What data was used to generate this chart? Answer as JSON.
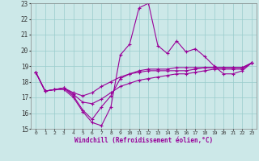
{
  "xlabel": "Windchill (Refroidissement éolien,°C)",
  "x": [
    0,
    1,
    2,
    3,
    4,
    5,
    6,
    7,
    8,
    9,
    10,
    11,
    12,
    13,
    14,
    15,
    16,
    17,
    18,
    19,
    20,
    21,
    22,
    23
  ],
  "line1": [
    18.6,
    17.4,
    17.5,
    17.5,
    17.0,
    16.1,
    15.4,
    15.2,
    16.4,
    19.7,
    20.4,
    22.7,
    23.0,
    20.3,
    19.8,
    20.6,
    19.9,
    20.1,
    19.6,
    19.0,
    18.5,
    18.5,
    18.7,
    19.2
  ],
  "line2": [
    18.6,
    17.4,
    17.5,
    17.6,
    17.1,
    16.2,
    15.6,
    16.4,
    17.1,
    18.2,
    18.5,
    18.7,
    18.8,
    18.8,
    18.8,
    18.9,
    18.9,
    18.9,
    18.9,
    18.9,
    18.9,
    18.9,
    18.9,
    19.2
  ],
  "line3": [
    18.6,
    17.4,
    17.5,
    17.6,
    17.2,
    16.7,
    16.6,
    16.9,
    17.3,
    17.7,
    17.9,
    18.1,
    18.2,
    18.3,
    18.4,
    18.5,
    18.5,
    18.6,
    18.7,
    18.8,
    18.8,
    18.8,
    18.8,
    19.2
  ],
  "line4": [
    18.6,
    17.4,
    17.5,
    17.6,
    17.3,
    17.1,
    17.3,
    17.7,
    18.0,
    18.3,
    18.5,
    18.6,
    18.7,
    18.7,
    18.7,
    18.7,
    18.7,
    18.8,
    18.9,
    18.9,
    18.9,
    18.9,
    18.9,
    19.2
  ],
  "line_color": "#990099",
  "bg_color": "#cce8e8",
  "grid_color": "#99cccc",
  "ylim": [
    15,
    23
  ],
  "yticks": [
    15,
    16,
    17,
    18,
    19,
    20,
    21,
    22,
    23
  ],
  "xticks": [
    0,
    1,
    2,
    3,
    4,
    5,
    6,
    7,
    8,
    9,
    10,
    11,
    12,
    13,
    14,
    15,
    16,
    17,
    18,
    19,
    20,
    21,
    22,
    23
  ],
  "marker": "+"
}
